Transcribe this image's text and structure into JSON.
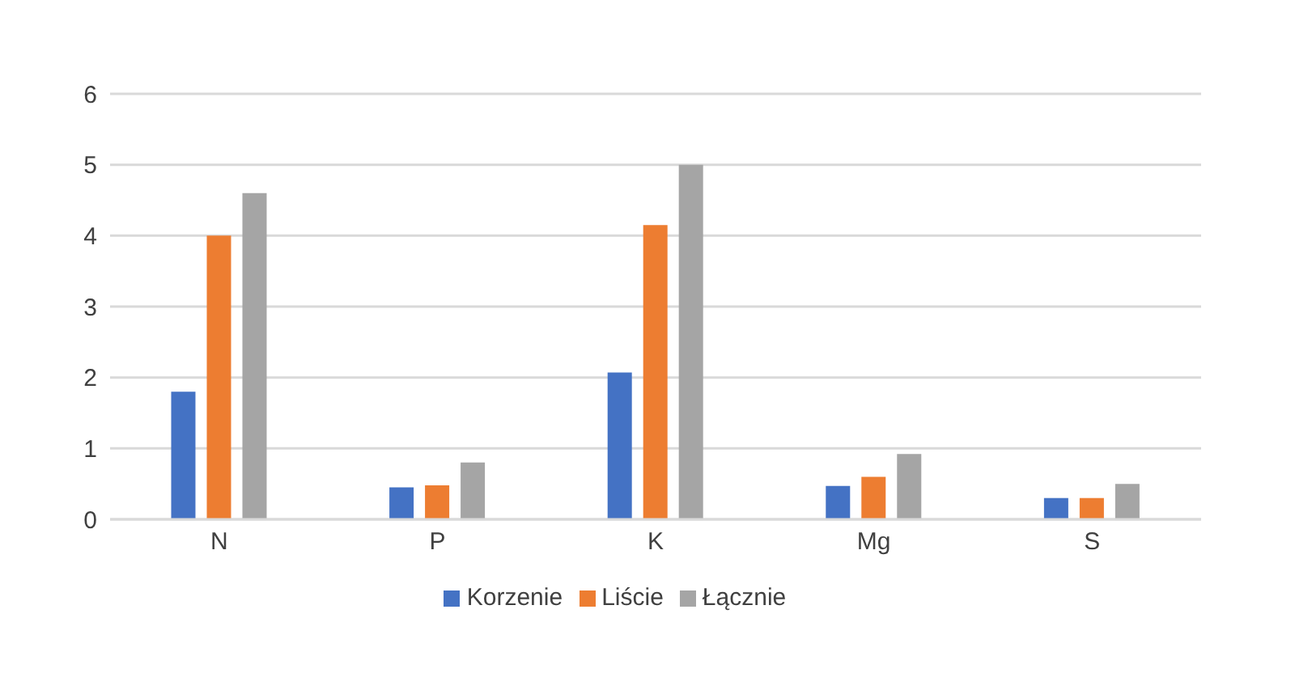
{
  "chart_data": {
    "type": "bar",
    "categories": [
      "N",
      "P",
      "K",
      "Mg",
      "S"
    ],
    "series": [
      {
        "name": "Korzenie",
        "color": "#4472c4",
        "values": [
          1.8,
          0.45,
          2.07,
          0.47,
          0.3
        ]
      },
      {
        "name": "Liście",
        "color": "#ed7d31",
        "values": [
          4.0,
          0.48,
          4.15,
          0.6,
          0.3
        ]
      },
      {
        "name": "Łącznie",
        "color": "#a5a5a5",
        "values": [
          4.6,
          0.8,
          5.0,
          0.92,
          0.5
        ]
      }
    ],
    "ylim": [
      0,
      6
    ],
    "yticks": [
      0,
      1,
      2,
      3,
      4,
      5,
      6
    ],
    "grid": "y",
    "legend": "bottom"
  }
}
